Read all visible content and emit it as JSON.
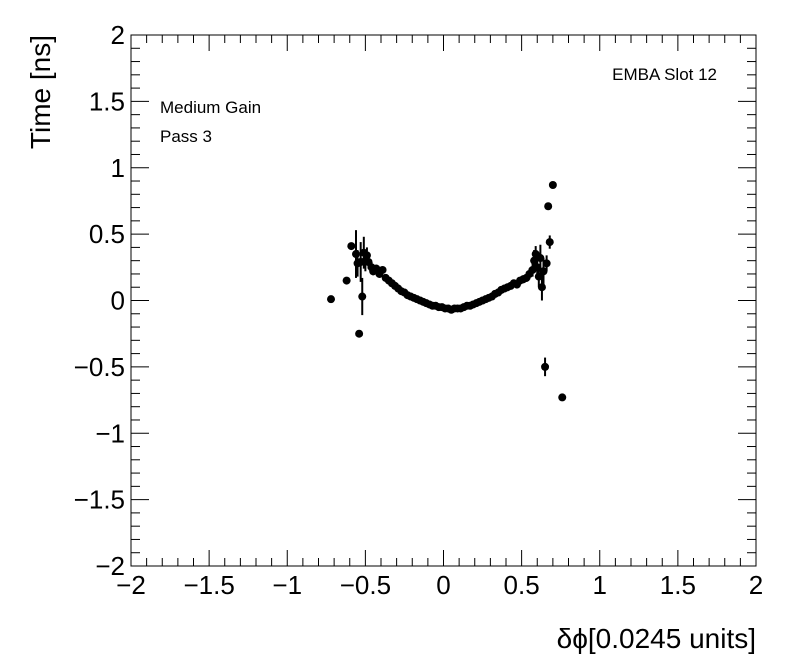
{
  "chart_data": {
    "type": "scatter",
    "title": "",
    "xlabel": "δϕ[0.0245 units]",
    "ylabel": "Time [ns]",
    "xlim": [
      -2,
      2
    ],
    "ylim": [
      -2,
      2
    ],
    "x_ticks": [
      -2,
      -1.5,
      -1,
      -0.5,
      0,
      0.5,
      1,
      1.5,
      2
    ],
    "x_tick_labels": [
      "−2",
      "−1.5",
      "−1",
      "−0.5",
      "0",
      "0.5",
      "1",
      "1.5",
      "2"
    ],
    "y_ticks": [
      -2,
      -1.5,
      -1,
      -0.5,
      0,
      0.5,
      1,
      1.5,
      2
    ],
    "y_tick_labels": [
      "−2",
      "−1.5",
      "−1",
      "−0.5",
      "0",
      "0.5",
      "1",
      "1.5",
      "2"
    ],
    "grid": false,
    "annotations": {
      "top_right": "EMBA Slot 12",
      "top_left_line1": "Medium Gain",
      "top_left_line2": "Pass 3"
    },
    "series": [
      {
        "marker_color": "#000000",
        "points": [
          {
            "x": -0.72,
            "y": 0.01,
            "err": 0.0
          },
          {
            "x": -0.62,
            "y": 0.15,
            "err": 0.0
          },
          {
            "x": -0.59,
            "y": 0.41,
            "err": 0.02
          },
          {
            "x": -0.56,
            "y": 0.35,
            "err": 0.18
          },
          {
            "x": -0.55,
            "y": 0.28,
            "err": 0.1
          },
          {
            "x": -0.54,
            "y": -0.25,
            "err": 0.0
          },
          {
            "x": -0.53,
            "y": 0.29,
            "err": 0.15
          },
          {
            "x": -0.52,
            "y": 0.03,
            "err": 0.14
          },
          {
            "x": -0.51,
            "y": 0.36,
            "err": 0.12
          },
          {
            "x": -0.5,
            "y": 0.3,
            "err": 0.08
          },
          {
            "x": -0.49,
            "y": 0.34,
            "err": 0.06
          },
          {
            "x": -0.48,
            "y": 0.29,
            "err": 0.05
          },
          {
            "x": -0.46,
            "y": 0.25,
            "err": 0.04
          },
          {
            "x": -0.45,
            "y": 0.22,
            "err": 0.03
          },
          {
            "x": -0.43,
            "y": 0.24,
            "err": 0.03
          },
          {
            "x": -0.41,
            "y": 0.2,
            "err": 0.02
          },
          {
            "x": -0.39,
            "y": 0.23,
            "err": 0.02
          },
          {
            "x": -0.37,
            "y": 0.17,
            "err": 0.02
          },
          {
            "x": -0.35,
            "y": 0.15,
            "err": 0.01
          },
          {
            "x": -0.33,
            "y": 0.13,
            "err": 0.01
          },
          {
            "x": -0.31,
            "y": 0.11,
            "err": 0.01
          },
          {
            "x": -0.29,
            "y": 0.09,
            "err": 0.01
          },
          {
            "x": -0.27,
            "y": 0.07,
            "err": 0.01
          },
          {
            "x": -0.25,
            "y": 0.06,
            "err": 0.01
          },
          {
            "x": -0.23,
            "y": 0.04,
            "err": 0.01
          },
          {
            "x": -0.21,
            "y": 0.03,
            "err": 0.01
          },
          {
            "x": -0.19,
            "y": 0.02,
            "err": 0.01
          },
          {
            "x": -0.17,
            "y": 0.01,
            "err": 0.01
          },
          {
            "x": -0.15,
            "y": -0.0,
            "err": 0.01
          },
          {
            "x": -0.13,
            "y": -0.01,
            "err": 0.01
          },
          {
            "x": -0.11,
            "y": -0.02,
            "err": 0.01
          },
          {
            "x": -0.09,
            "y": -0.03,
            "err": 0.01
          },
          {
            "x": -0.07,
            "y": -0.04,
            "err": 0.01
          },
          {
            "x": -0.05,
            "y": -0.04,
            "err": 0.01
          },
          {
            "x": -0.03,
            "y": -0.05,
            "err": 0.01
          },
          {
            "x": -0.01,
            "y": -0.05,
            "err": 0.01
          },
          {
            "x": 0.01,
            "y": -0.06,
            "err": 0.01
          },
          {
            "x": 0.03,
            "y": -0.06,
            "err": 0.01
          },
          {
            "x": 0.05,
            "y": -0.07,
            "err": 0.01
          },
          {
            "x": 0.07,
            "y": -0.06,
            "err": 0.01
          },
          {
            "x": 0.09,
            "y": -0.06,
            "err": 0.01
          },
          {
            "x": 0.11,
            "y": -0.06,
            "err": 0.01
          },
          {
            "x": 0.13,
            "y": -0.05,
            "err": 0.01
          },
          {
            "x": 0.15,
            "y": -0.04,
            "err": 0.01
          },
          {
            "x": 0.17,
            "y": -0.04,
            "err": 0.01
          },
          {
            "x": 0.19,
            "y": -0.03,
            "err": 0.01
          },
          {
            "x": 0.21,
            "y": -0.02,
            "err": 0.01
          },
          {
            "x": 0.23,
            "y": -0.01,
            "err": 0.01
          },
          {
            "x": 0.25,
            "y": 0.0,
            "err": 0.01
          },
          {
            "x": 0.27,
            "y": 0.01,
            "err": 0.01
          },
          {
            "x": 0.29,
            "y": 0.02,
            "err": 0.01
          },
          {
            "x": 0.31,
            "y": 0.03,
            "err": 0.01
          },
          {
            "x": 0.33,
            "y": 0.05,
            "err": 0.01
          },
          {
            "x": 0.35,
            "y": 0.06,
            "err": 0.01
          },
          {
            "x": 0.37,
            "y": 0.08,
            "err": 0.01
          },
          {
            "x": 0.39,
            "y": 0.09,
            "err": 0.02
          },
          {
            "x": 0.41,
            "y": 0.1,
            "err": 0.02
          },
          {
            "x": 0.43,
            "y": 0.11,
            "err": 0.02
          },
          {
            "x": 0.45,
            "y": 0.13,
            "err": 0.02
          },
          {
            "x": 0.47,
            "y": 0.12,
            "err": 0.02
          },
          {
            "x": 0.49,
            "y": 0.15,
            "err": 0.02
          },
          {
            "x": 0.51,
            "y": 0.16,
            "err": 0.03
          },
          {
            "x": 0.53,
            "y": 0.17,
            "err": 0.03
          },
          {
            "x": 0.55,
            "y": 0.2,
            "err": 0.04
          },
          {
            "x": 0.57,
            "y": 0.23,
            "err": 0.05
          },
          {
            "x": 0.58,
            "y": 0.3,
            "err": 0.08
          },
          {
            "x": 0.59,
            "y": 0.35,
            "err": 0.06
          },
          {
            "x": 0.6,
            "y": 0.25,
            "err": 0.07
          },
          {
            "x": 0.61,
            "y": 0.18,
            "err": 0.08
          },
          {
            "x": 0.62,
            "y": 0.32,
            "err": 0.1
          },
          {
            "x": 0.63,
            "y": 0.1,
            "err": 0.1
          },
          {
            "x": 0.64,
            "y": 0.22,
            "err": 0.1
          },
          {
            "x": 0.65,
            "y": -0.5,
            "err": 0.07
          },
          {
            "x": 0.66,
            "y": 0.28,
            "err": 0.06
          },
          {
            "x": 0.67,
            "y": 0.71,
            "err": 0.0
          },
          {
            "x": 0.68,
            "y": 0.44,
            "err": 0.05
          },
          {
            "x": 0.7,
            "y": 0.87,
            "err": 0.0
          },
          {
            "x": 0.76,
            "y": -0.73,
            "err": 0.0
          }
        ]
      }
    ]
  }
}
